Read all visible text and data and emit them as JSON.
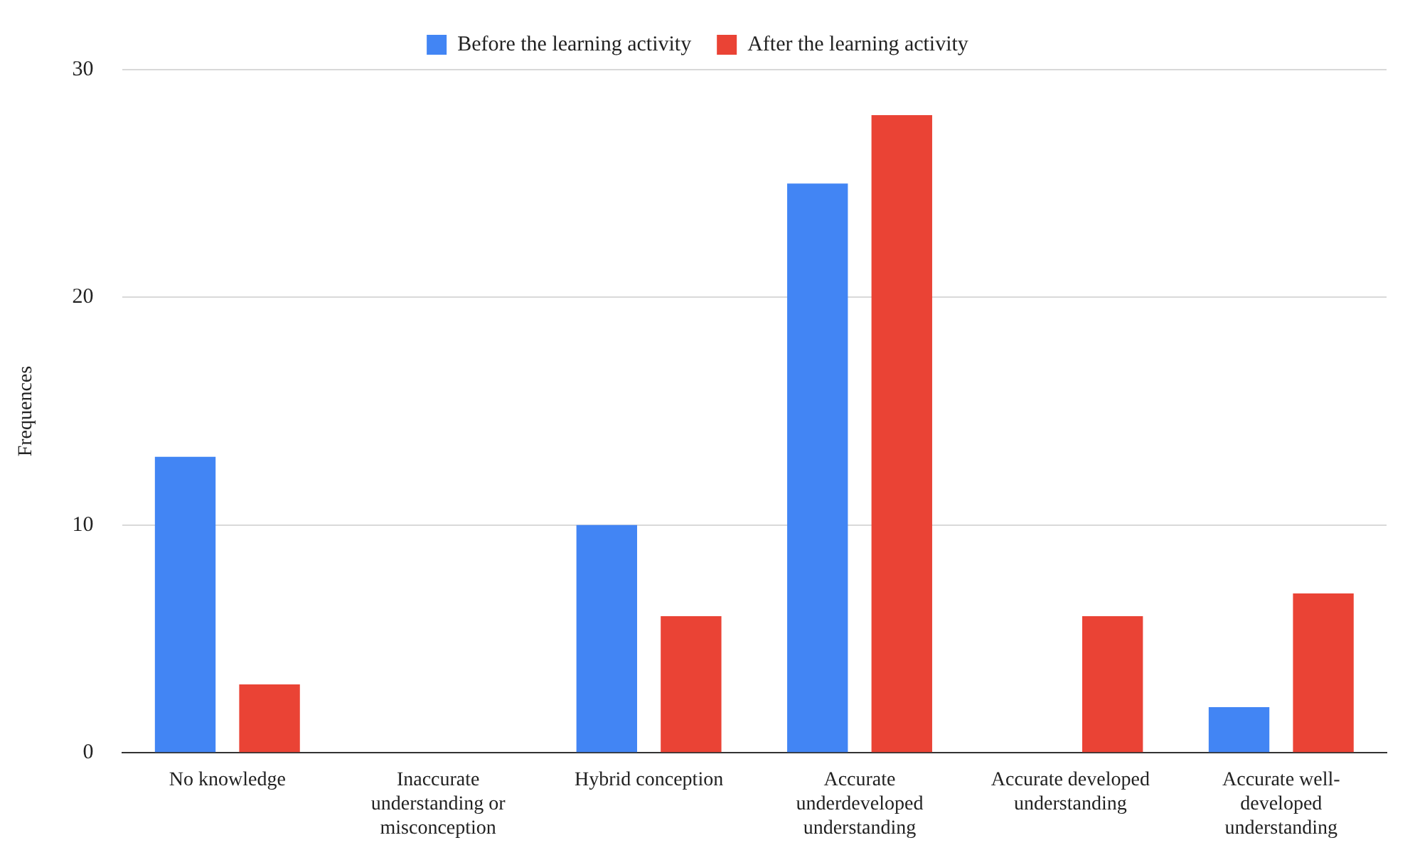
{
  "chart_data": {
    "type": "bar",
    "ylabel": "Frequences",
    "categories": [
      "No knowledge",
      "Inaccurate understanding or misconception",
      "Hybrid conception",
      "Accurate underdeveloped understanding",
      "Accurate developed understanding",
      "Accurate well-developed understanding"
    ],
    "series": [
      {
        "name": "Before the learning activity",
        "color": "#4285f4",
        "values": [
          13,
          0,
          10,
          25,
          0,
          2
        ]
      },
      {
        "name": "After the learning activity",
        "color": "#ea4335",
        "values": [
          3,
          0,
          6,
          28,
          6,
          7
        ]
      }
    ],
    "ylim": [
      0,
      30
    ],
    "yticks": [
      0,
      10,
      20,
      30
    ],
    "grid": "y",
    "legend": "top"
  }
}
